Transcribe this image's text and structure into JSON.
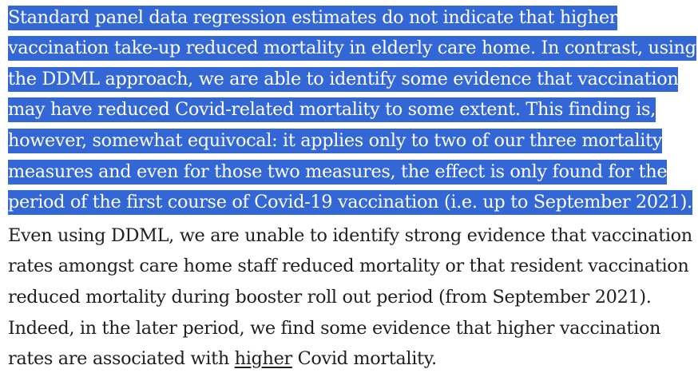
{
  "paragraph": {
    "selected_lines": [
      "Standard panel data regression estimates do not indicate that higher",
      "vaccination take-up reduced mortality in elderly care home. In contrast, using",
      "the DDML approach, we are able to identify some evidence that vaccination",
      "may have reduced Covid-related mortality to some extent. This finding is,",
      "however, somewhat equivocal: it applies only to two of our three mortality",
      "measures and even for those two measures, the effect is only found for the",
      "period of the first course of Covid-19 vaccination (i.e. up to September 2021)."
    ],
    "plain_lines": [
      "Even using DDML, we are unable to identify strong evidence that vaccination",
      "rates amongst care home staff reduced mortality or that resident vaccination",
      "reduced mortality during booster roll out period (from September 2021).",
      "Indeed, in the later period, we find some evidence that higher vaccination"
    ],
    "last_line": {
      "before": "rates are associated with ",
      "underlined": "higher",
      "after": " Covid mortality."
    }
  },
  "colors": {
    "selection": "#3367d6",
    "text": "#1f1f1f",
    "background": "#ffffff"
  }
}
